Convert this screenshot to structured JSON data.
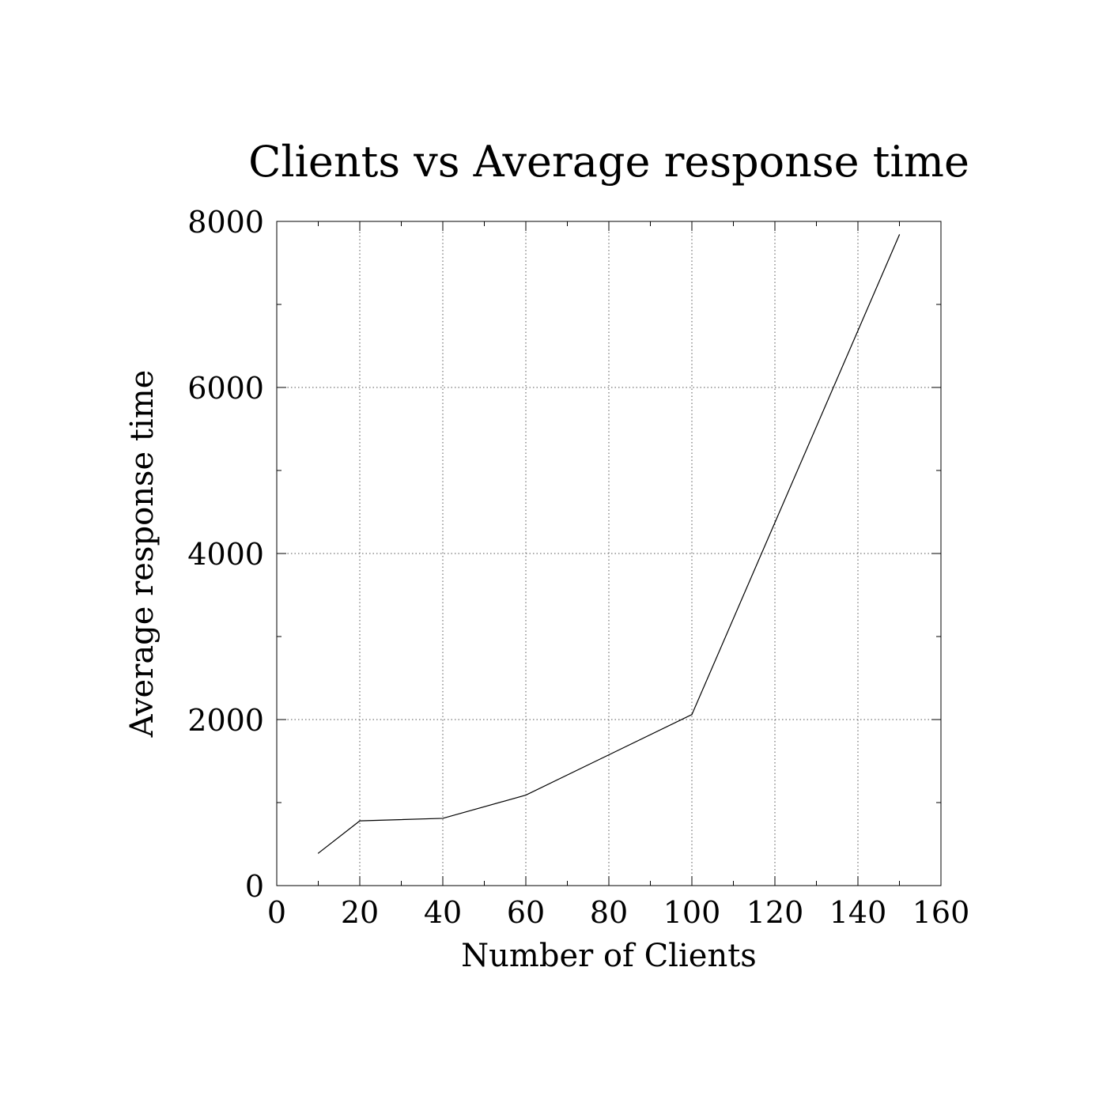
{
  "chart_data": {
    "type": "line",
    "title": "Clients vs Average response time",
    "xlabel": "Number of Clients",
    "ylabel": "Average response time",
    "xlim": [
      0,
      160
    ],
    "ylim": [
      0,
      8000
    ],
    "x_ticks": [
      0,
      20,
      40,
      60,
      80,
      100,
      120,
      140,
      160
    ],
    "y_ticks": [
      0,
      2000,
      4000,
      6000,
      8000
    ],
    "grid": true,
    "grid_style": "dotted",
    "series": [
      {
        "x": [
          10,
          20,
          40,
          60,
          100,
          150
        ],
        "y": [
          390,
          780,
          810,
          1090,
          2060,
          7840
        ]
      }
    ],
    "colors": {
      "line": "#000000",
      "axes": "#000000",
      "grid": "#555555"
    }
  }
}
